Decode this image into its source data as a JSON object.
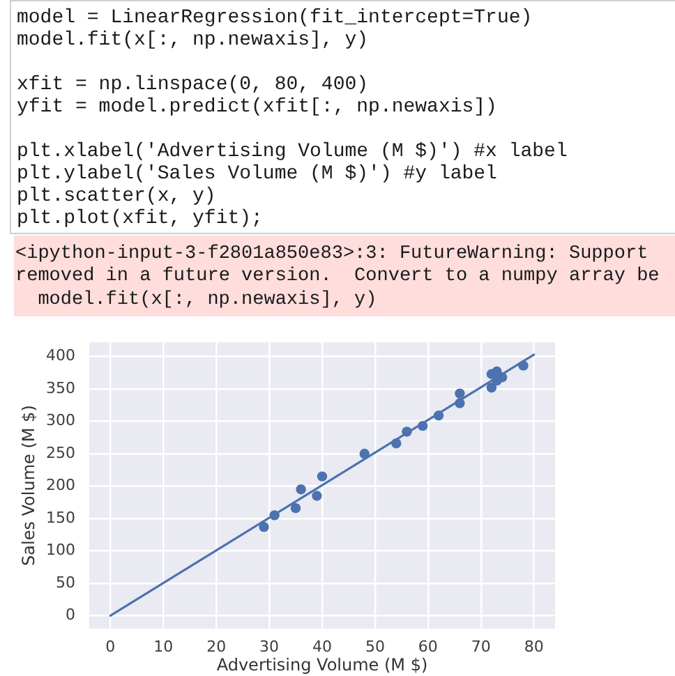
{
  "chart_data": {
    "type": "scatter",
    "xlabel": "Advertising Volume (M $)",
    "ylabel": "Sales Volume (M $)",
    "xlim": [
      -4,
      84
    ],
    "ylim": [
      -20,
      422
    ],
    "xticks": [
      0,
      10,
      20,
      30,
      40,
      50,
      60,
      70,
      80
    ],
    "yticks": [
      0,
      50,
      100,
      150,
      200,
      250,
      300,
      350,
      400
    ],
    "grid": true,
    "legend": false,
    "marker": "circle",
    "series": [
      {
        "type": "scatter",
        "color": "#4c72b0",
        "x": [
          29,
          31,
          35,
          36,
          39,
          40,
          48,
          54,
          56,
          59,
          62,
          66,
          66,
          72,
          72,
          73,
          73,
          74,
          78
        ],
        "values": [
          137,
          155,
          166,
          195,
          185,
          215,
          250,
          266,
          284,
          293,
          309,
          343,
          328,
          352,
          373,
          377,
          363,
          368,
          386
        ]
      },
      {
        "type": "line",
        "color": "#4c72b0",
        "marker": "none",
        "x": [
          0,
          80
        ],
        "values": [
          0,
          403
        ]
      }
    ],
    "annotations": [
      "model = LinearRegression(fit_intercept=True)",
      "model.fit(x[:, np.newaxis], y)",
      "xfit = np.linspace(0, 80, 400)",
      "yfit = model.predict(xfit[:, np.newaxis])",
      "plt.xlabel('Advertising Volume (M $)') #x label",
      "plt.ylabel('Sales Volume (M $)') #y label",
      "plt.scatter(x, y)",
      "plt.plot(xfit, yfit);",
      "<ipython-input-3-f2801a850e83>:3: FutureWarning: Support",
      "removed in a future version.  Convert to a numpy array be",
      "model.fit(x[:, np.newaxis], y)"
    ]
  }
}
